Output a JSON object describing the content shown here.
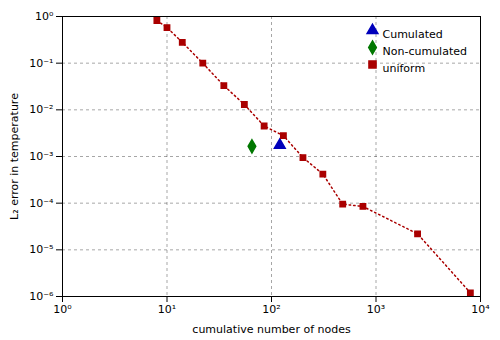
{
  "chart_data": {
    "type": "line",
    "xlabel": "cumulative number of nodes",
    "ylabel": "L₂ error in temperature",
    "log": true,
    "grid": true,
    "legend": "upper right",
    "xlim": [
      1,
      10000
    ],
    "ylim": [
      1e-06,
      1
    ],
    "xticks": [
      {
        "value": 1,
        "label": "10⁰"
      },
      {
        "value": 10,
        "label": "10¹"
      },
      {
        "value": 100,
        "label": "10²"
      },
      {
        "value": 1000,
        "label": "10³"
      },
      {
        "value": 10000,
        "label": "10⁴"
      }
    ],
    "yticks": [
      {
        "value": 1e-06,
        "label": "10⁻⁶"
      },
      {
        "value": 1e-05,
        "label": "10⁻⁵"
      },
      {
        "value": 0.0001,
        "label": "10⁻⁴"
      },
      {
        "value": 0.001,
        "label": "10⁻³"
      },
      {
        "value": 0.01,
        "label": "10⁻²"
      },
      {
        "value": 0.1,
        "label": "10⁻¹"
      },
      {
        "value": 1,
        "label": "10⁰"
      }
    ],
    "series": [
      {
        "name": "Cumulated",
        "type": "scatter",
        "color": "#0000bb",
        "marker": "triangle",
        "x": [
          120
        ],
        "values": [
          0.00175
        ]
      },
      {
        "name": "Non-cumulated",
        "type": "scatter",
        "color": "#007700",
        "marker": "diamond",
        "x": [
          65
        ],
        "values": [
          0.00165
        ]
      },
      {
        "name": "uniform",
        "type": "line",
        "color": "#aa0000",
        "marker": "square",
        "line_style": "dotted",
        "x": [
          8,
          10,
          14,
          22,
          35,
          55,
          85,
          130,
          200,
          310,
          480,
          750,
          2500,
          8000
        ],
        "values": [
          0.82,
          0.58,
          0.28,
          0.1,
          0.033,
          0.013,
          0.0045,
          0.0028,
          0.00095,
          0.00042,
          9.5e-05,
          8.5e-05,
          2.2e-05,
          1.2e-06
        ]
      }
    ]
  }
}
